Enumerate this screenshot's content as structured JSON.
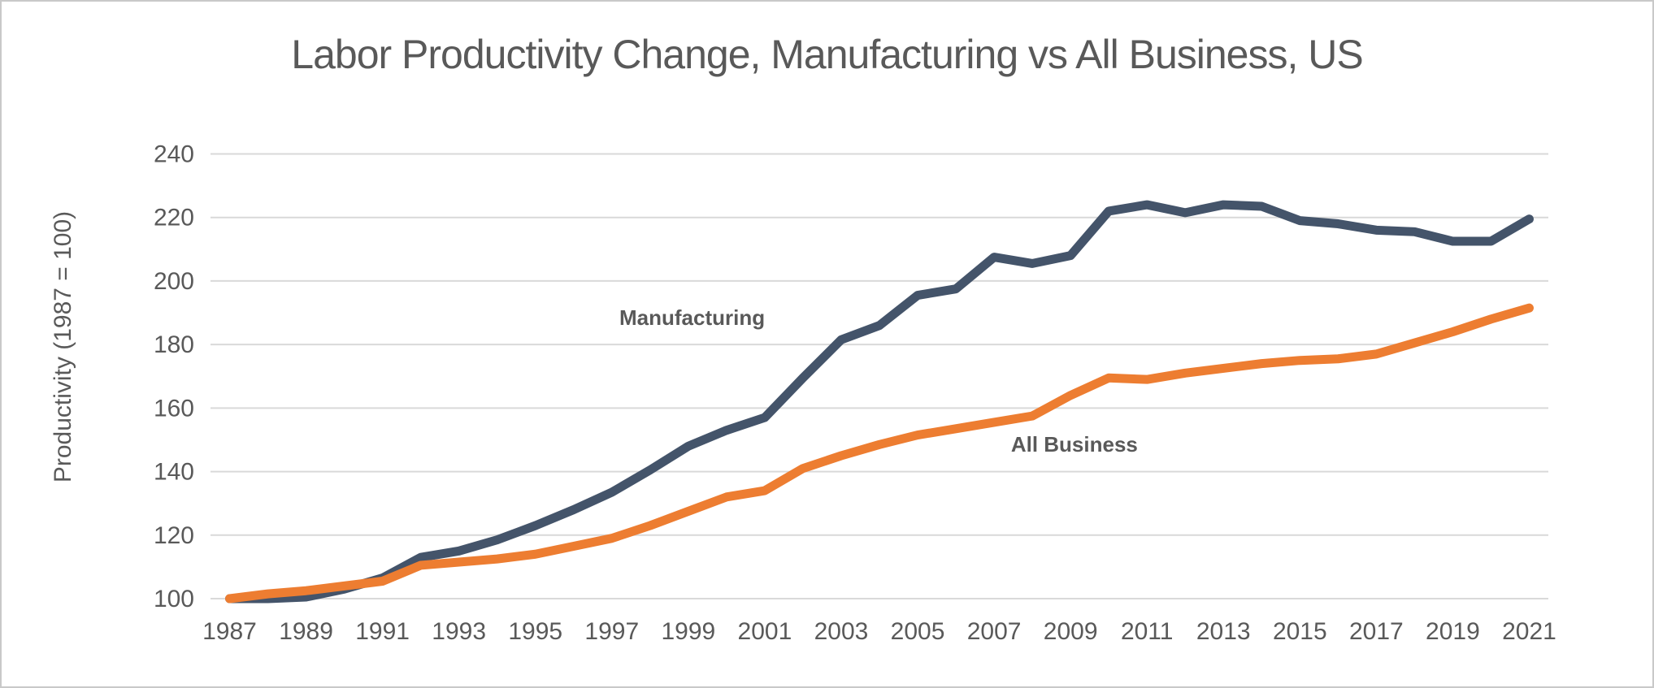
{
  "chart_data": {
    "type": "line",
    "title": "Labor Productivity Change, Manufacturing vs All Business, US",
    "ylabel": "Productivity (1987 = 100)",
    "xlabel": "",
    "x": [
      1987,
      1988,
      1989,
      1990,
      1991,
      1992,
      1993,
      1994,
      1995,
      1996,
      1997,
      1998,
      1999,
      2000,
      2001,
      2002,
      2003,
      2004,
      2005,
      2006,
      2007,
      2008,
      2009,
      2010,
      2011,
      2012,
      2013,
      2014,
      2015,
      2016,
      2017,
      2018,
      2019,
      2020,
      2021
    ],
    "x_tick_labels": [
      "1987",
      "1989",
      "1991",
      "1993",
      "1995",
      "1997",
      "1999",
      "2001",
      "2003",
      "2005",
      "2007",
      "2009",
      "2011",
      "2013",
      "2015",
      "2017",
      "2019",
      "2021"
    ],
    "ylim": [
      100,
      240
    ],
    "y_ticks": [
      100,
      120,
      140,
      160,
      180,
      200,
      220,
      240
    ],
    "grid": "horizontal-only",
    "legend_position": "inline-data-labels",
    "series": [
      {
        "name": "Manufacturing",
        "color": "#44546A",
        "values": [
          100,
          100,
          100.5,
          103,
          106.5,
          113,
          115,
          118.5,
          123,
          128,
          133.5,
          140.5,
          148,
          153,
          157,
          169.5,
          181.5,
          186,
          195.5,
          197.5,
          207.5,
          205.5,
          208,
          222,
          224,
          221.5,
          224,
          223.5,
          219,
          218,
          216,
          215.5,
          212.5,
          212.5,
          219.5
        ],
        "label_anchor": {
          "x": 1999.1,
          "y": 188.5
        }
      },
      {
        "name": "All Business",
        "color": "#ED7D31",
        "values": [
          100,
          101.5,
          102.5,
          104,
          105.5,
          110.5,
          111.5,
          112.5,
          114,
          116.5,
          119,
          123,
          127.5,
          132,
          134,
          141,
          145,
          148.5,
          151.5,
          153.5,
          155.5,
          157.5,
          164,
          169.5,
          169,
          171,
          172.5,
          174,
          175,
          175.5,
          177,
          180.5,
          184,
          188,
          191.5
        ],
        "label_anchor": {
          "x": 2009.1,
          "y": 148.6
        }
      }
    ],
    "styles": {
      "text_color": "#595959",
      "gridline_color": "#D9D9D9",
      "background": "#FFFFFF",
      "line_width": 11
    }
  }
}
